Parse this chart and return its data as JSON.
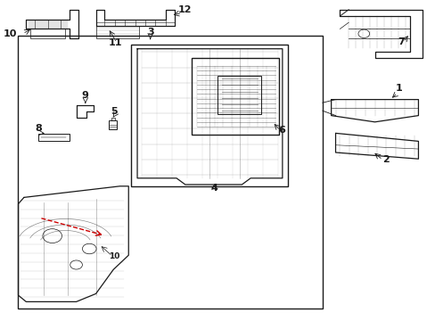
{
  "bg_color": "#ffffff",
  "line_color": "#1a1a1a",
  "red_dashed_color": "#cc0000",
  "fig_width": 4.89,
  "fig_height": 3.6,
  "dpi": 100
}
